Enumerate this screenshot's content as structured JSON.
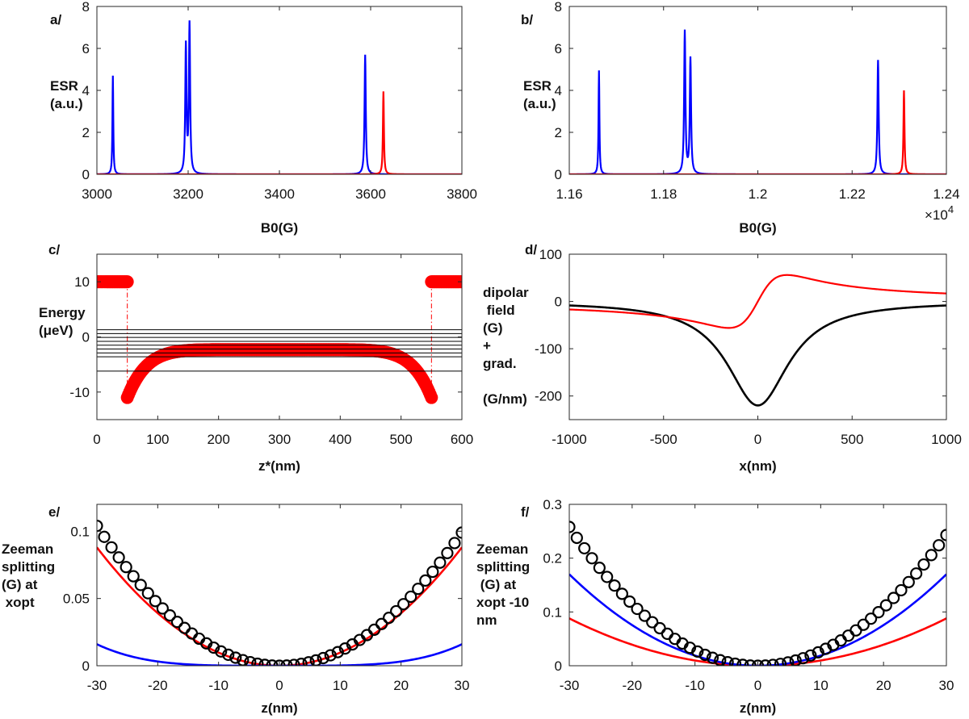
{
  "chart_data": [
    {
      "type": "line",
      "panel_label": "a/",
      "ylabel_lines": [
        "ESR",
        "(a.u.)"
      ],
      "xlabel": "B0(G)",
      "xlim": [
        3000,
        3800
      ],
      "ylim": [
        0,
        8
      ],
      "xticks": [
        3000,
        3200,
        3400,
        3600,
        3800
      ],
      "yticks": [
        0,
        2,
        4,
        6,
        8
      ],
      "xtick_labels": [
        "3000",
        "3200",
        "3400",
        "3600",
        "3800"
      ],
      "ytick_labels": [
        "0",
        "2",
        "4",
        "6",
        "8"
      ],
      "exponent": "",
      "series": [
        {
          "name": "blue",
          "color": "#0000ff",
          "kind": "peaks",
          "peaks": [
            [
              3035,
              4.7,
              1.1
            ],
            [
              3195,
              6.1,
              1.6
            ],
            [
              3203,
              7.1,
              1.6
            ],
            [
              3588,
              5.7,
              1.6
            ]
          ]
        },
        {
          "name": "red",
          "color": "#ff0000",
          "kind": "peaks",
          "peaks": [
            [
              3628,
              3.95,
              1.3
            ]
          ]
        }
      ]
    },
    {
      "type": "line",
      "panel_label": "b/",
      "ylabel_lines": [
        "ESR",
        "(a.u.)"
      ],
      "xlabel": "B0(G)",
      "xlim": [
        11600,
        12400
      ],
      "ylim": [
        0,
        8
      ],
      "xticks": [
        11600,
        11800,
        12000,
        12200,
        12400
      ],
      "yticks": [
        0,
        2,
        4,
        6,
        8
      ],
      "xtick_labels": [
        "1.16",
        "1.18",
        "1.2",
        "1.22",
        "1.24"
      ],
      "ytick_labels": [
        "0",
        "2",
        "4",
        "6",
        "8"
      ],
      "exponent": "×10",
      "exponent_power": "4",
      "series": [
        {
          "name": "blue",
          "color": "#0000ff",
          "kind": "peaks",
          "peaks": [
            [
              11663,
              4.95,
              1.1
            ],
            [
              11845,
              6.8,
              1.6
            ],
            [
              11857,
              5.5,
              1.6
            ],
            [
              12255,
              5.45,
              1.6
            ]
          ]
        },
        {
          "name": "red",
          "color": "#ff0000",
          "kind": "peaks",
          "peaks": [
            [
              12310,
              4.0,
              1.3
            ]
          ]
        }
      ]
    },
    {
      "type": "scatter",
      "panel_label": "c/",
      "ylabel_lines": [
        "Energy",
        "(μeV)"
      ],
      "xlabel": "z*(nm)",
      "xlim": [
        0,
        600
      ],
      "ylim": [
        -15,
        15
      ],
      "xticks": [
        0,
        100,
        200,
        300,
        400,
        500,
        600
      ],
      "yticks": [
        -10,
        0,
        10
      ],
      "xtick_labels": [
        "0",
        "100",
        "200",
        "300",
        "400",
        "500",
        "600"
      ],
      "ytick_labels": [
        "-10",
        "0",
        "10"
      ],
      "exponent": "",
      "barrier_height": 10,
      "well_edges": [
        50,
        550
      ],
      "well_center": 300,
      "well_bottom": -11,
      "well_top": -2.3,
      "energy_levels": [
        1.3,
        0.6,
        -0.1,
        -0.8,
        -1.5,
        -2.2,
        -2.9,
        -3.6,
        -6.2
      ],
      "series": [
        {
          "name": "potential",
          "color": "#ff0000",
          "kind": "markers"
        },
        {
          "name": "levels",
          "color": "#000000",
          "kind": "hlines"
        }
      ]
    },
    {
      "type": "line",
      "panel_label": "d/",
      "ylabel_lines": [
        "dipolar",
        " field",
        "(G)",
        "+",
        "grad.",
        "",
        "(G/nm)"
      ],
      "xlabel": "x(nm)",
      "xlim": [
        -1000,
        1000
      ],
      "ylim": [
        -250,
        100
      ],
      "xticks": [
        -1000,
        -500,
        0,
        500,
        1000
      ],
      "yticks": [
        -200,
        -100,
        0,
        100
      ],
      "xtick_labels": [
        "-1000",
        "-500",
        "0",
        "500",
        "1000"
      ],
      "ytick_labels": [
        "-200",
        "-100",
        "0",
        "100"
      ],
      "exponent": "",
      "series": [
        {
          "name": "dipolar field",
          "color": "#000000",
          "kind": "lorentz",
          "amplitude": -220,
          "width": 200
        },
        {
          "name": "gradient",
          "color": "#ff0000",
          "kind": "derivative",
          "amplitude": 56,
          "width": 155
        }
      ]
    },
    {
      "type": "line",
      "panel_label": "e/",
      "ylabel_lines": [
        "Zeeman",
        "splitting",
        "(G) at",
        " xopt"
      ],
      "xlabel": "z(nm)",
      "xlim": [
        -30,
        30
      ],
      "ylim": [
        0,
        0.12
      ],
      "xticks": [
        -30,
        -20,
        -10,
        0,
        10,
        20,
        30
      ],
      "yticks": [
        0,
        0.05,
        0.1
      ],
      "xtick_labels": [
        "-30",
        "-20",
        "-10",
        "0",
        "10",
        "20",
        "30"
      ],
      "ytick_labels": [
        "0",
        "0.05",
        "0.1"
      ],
      "exponent": "",
      "series": [
        {
          "name": "red",
          "color": "#ff0000",
          "kind": "poly",
          "edge": 0.088,
          "power": 2
        },
        {
          "name": "blue",
          "color": "#0000ff",
          "kind": "poly",
          "edge": 0.016,
          "power": 4
        },
        {
          "name": "total",
          "color": "#000000",
          "kind": "circles",
          "edge_left": 0.104,
          "edge_right": 0.099,
          "power": 2,
          "step": 1.2
        }
      ]
    },
    {
      "type": "line",
      "panel_label": "f/",
      "ylabel_lines": [
        "Zeeman",
        "splitting",
        " (G) at",
        "xopt -10",
        "nm"
      ],
      "xlabel": "z(nm)",
      "xlim": [
        -30,
        30
      ],
      "ylim": [
        0,
        0.3
      ],
      "xticks": [
        -30,
        -20,
        -10,
        0,
        10,
        20,
        30
      ],
      "yticks": [
        0,
        0.1,
        0.2,
        0.3
      ],
      "xtick_labels": [
        "-30",
        "-20",
        "-10",
        "0",
        "10",
        "20",
        "30"
      ],
      "ytick_labels": [
        "0",
        "0.1",
        "0.2",
        "0.3"
      ],
      "exponent": "",
      "series": [
        {
          "name": "red",
          "color": "#ff0000",
          "kind": "poly",
          "edge": 0.088,
          "power": 2
        },
        {
          "name": "blue",
          "color": "#0000ff",
          "kind": "poly",
          "edge": 0.17,
          "power": 2
        },
        {
          "name": "total",
          "color": "#000000",
          "kind": "circles",
          "edge_left": 0.258,
          "edge_right": 0.243,
          "power": 2,
          "step": 1.2
        }
      ]
    }
  ]
}
